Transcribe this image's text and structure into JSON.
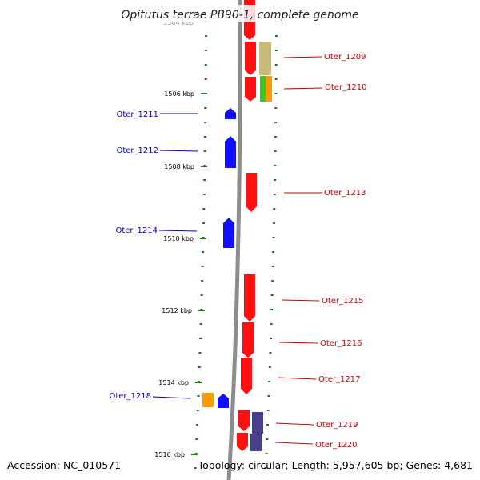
{
  "title": "Opitutus terrae PB90-1, complete genome",
  "footer": {
    "accession": "Accession: NC_010571",
    "topology": "Topology: circular; Length: 5,957,605 bp; Genes: 4,681"
  },
  "colors": {
    "forward_label": "#cc0000",
    "reverse_label": "#0000cc",
    "tick": "#1a7a1a",
    "backbone": "#8c8c8c",
    "gene_red": "#ff1010",
    "gene_blue": "#1010ff",
    "gene_orange": "#ff9a00",
    "gene_khaki": "#c6bb7a",
    "gene_green": "#33cc22",
    "gene_purple": "#4a3f8c"
  },
  "scale": {
    "kbp_labels": [
      "1504 kbp",
      "1506 kbp",
      "1508 kbp",
      "1510 kbp",
      "1512 kbp",
      "1514 kbp",
      "1516 kbp"
    ]
  },
  "forward_genes": [
    {
      "label": "Oter_1209"
    },
    {
      "label": "Oter_1210"
    },
    {
      "label": "Oter_1213"
    },
    {
      "label": "Oter_1215"
    },
    {
      "label": "Oter_1216"
    },
    {
      "label": "Oter_1217"
    },
    {
      "label": "Oter_1219"
    },
    {
      "label": "Oter_1220"
    }
  ],
  "reverse_genes": [
    {
      "label": "Oter_1211"
    },
    {
      "label": "Oter_1212"
    },
    {
      "label": "Oter_1214"
    },
    {
      "label": "Oter_1218"
    }
  ]
}
